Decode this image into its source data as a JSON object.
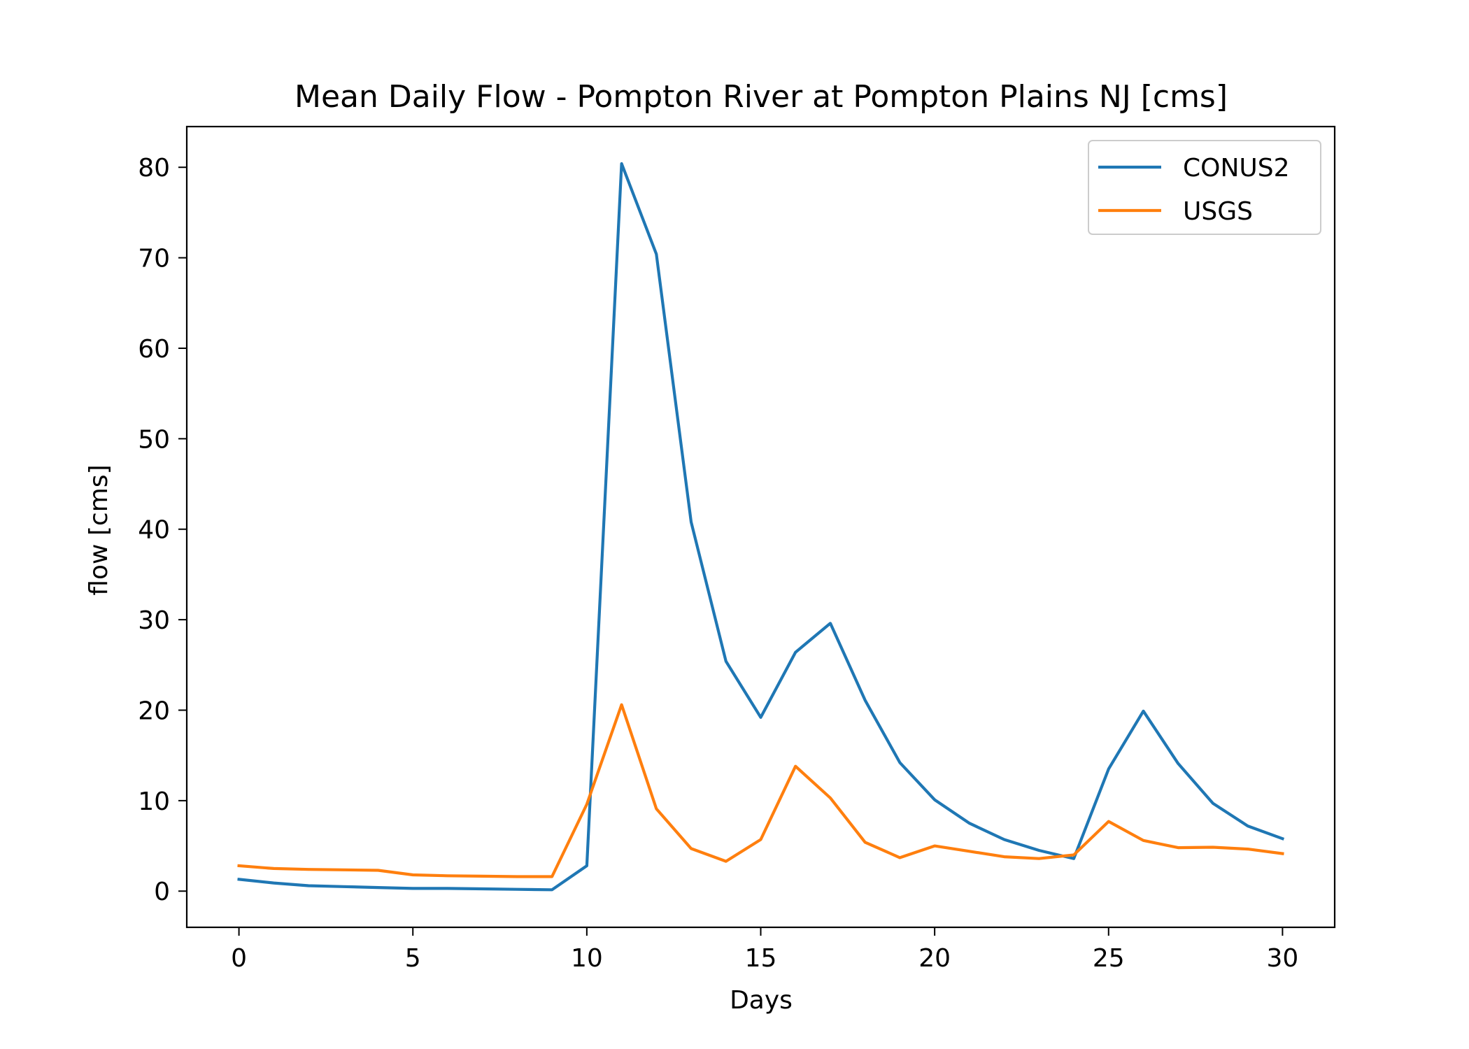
{
  "chart_data": {
    "type": "line",
    "title": "Mean Daily Flow - Pompton River at Pompton Plains NJ [cms]",
    "xlabel": "Days",
    "ylabel": "flow [cms]",
    "xlim": [
      -1.5,
      31.5
    ],
    "ylim": [
      -4,
      84.5
    ],
    "xticks": [
      0,
      5,
      10,
      15,
      20,
      25,
      30
    ],
    "yticks": [
      0,
      10,
      20,
      30,
      40,
      50,
      60,
      70,
      80
    ],
    "grid": false,
    "legend_position": "top-right",
    "x": [
      0,
      1,
      2,
      3,
      4,
      5,
      6,
      7,
      8,
      9,
      10,
      11,
      12,
      13,
      14,
      15,
      16,
      17,
      18,
      19,
      20,
      21,
      22,
      23,
      24,
      25,
      26,
      27,
      28,
      29,
      30
    ],
    "series": [
      {
        "name": "CONUS2",
        "color": "#1f77b4",
        "values": [
          1.3,
          0.9,
          0.6,
          0.5,
          0.4,
          0.3,
          0.3,
          0.25,
          0.2,
          0.15,
          2.8,
          80.4,
          70.4,
          40.8,
          25.4,
          19.2,
          26.4,
          29.6,
          21.1,
          14.2,
          10.1,
          7.5,
          5.7,
          4.5,
          3.6,
          13.5,
          19.9,
          14.1,
          9.7,
          7.2,
          5.8
        ]
      },
      {
        "name": "USGS",
        "color": "#ff7f0e",
        "values": [
          2.8,
          2.5,
          2.4,
          2.35,
          2.3,
          1.8,
          1.7,
          1.65,
          1.6,
          1.6,
          9.6,
          20.6,
          9.1,
          4.7,
          3.3,
          5.7,
          13.8,
          10.3,
          5.4,
          3.7,
          5.0,
          4.4,
          3.8,
          3.6,
          4.0,
          7.7,
          5.6,
          4.8,
          4.85,
          4.65,
          4.15
        ]
      }
    ]
  }
}
